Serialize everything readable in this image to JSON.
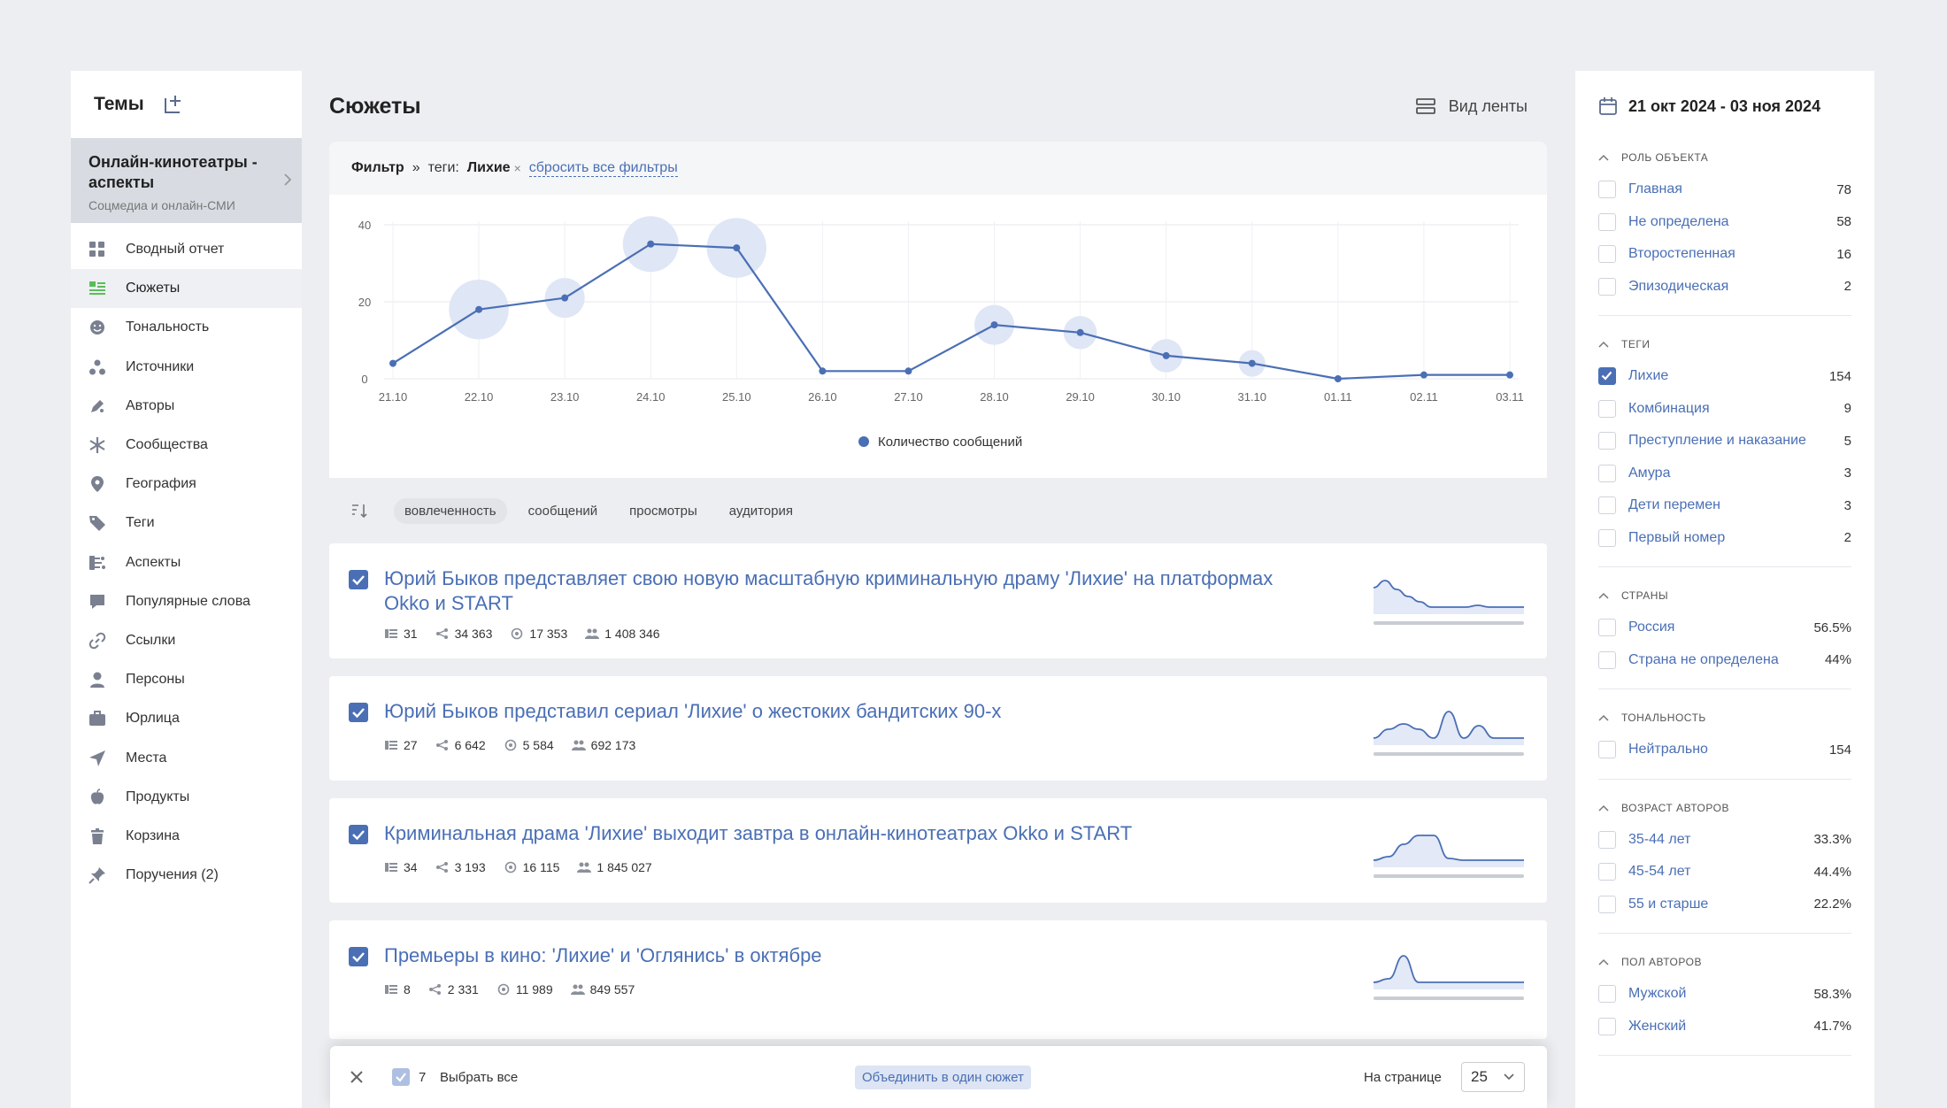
{
  "sidebar": {
    "title": "Темы",
    "theme": {
      "name": "Онлайн-кинотеатры - аспекты",
      "subtitle": "Соцмедиа и онлайн-СМИ"
    },
    "items": [
      {
        "label": "Сводный отчет",
        "icon": "grid-icon"
      },
      {
        "label": "Сюжеты",
        "icon": "stories-icon",
        "active": true
      },
      {
        "label": "Тональность",
        "icon": "smile-icon"
      },
      {
        "label": "Источники",
        "icon": "sources-icon"
      },
      {
        "label": "Авторы",
        "icon": "pen-icon"
      },
      {
        "label": "Сообщества",
        "icon": "communities-icon"
      },
      {
        "label": "География",
        "icon": "map-pin-icon"
      },
      {
        "label": "Теги",
        "icon": "tag-icon"
      },
      {
        "label": "Аспекты",
        "icon": "aspects-icon"
      },
      {
        "label": "Популярные слова",
        "icon": "speech-bubble-icon"
      },
      {
        "label": "Ссылки",
        "icon": "link-icon"
      },
      {
        "label": "Персоны",
        "icon": "person-icon"
      },
      {
        "label": "Юрлица",
        "icon": "briefcase-icon"
      },
      {
        "label": "Места",
        "icon": "navigation-icon"
      },
      {
        "label": "Продукты",
        "icon": "apple-icon"
      },
      {
        "label": "Корзина",
        "icon": "trash-icon"
      },
      {
        "label": "Поручения (2)",
        "icon": "pin-icon"
      }
    ]
  },
  "main": {
    "title": "Сюжеты",
    "feed_view_label": "Вид ленты",
    "filter": {
      "label": "Фильтр",
      "arrow": "»",
      "tags_label": "теги:",
      "tag_value": "Лихие",
      "remove_symbol": "×",
      "reset_label": "сбросить все фильтры"
    },
    "sort": {
      "options": [
        "вовлеченность",
        "сообщений",
        "просмотры",
        "аудитория"
      ],
      "active": 0
    },
    "stories": [
      {
        "title": "Юрий Быков представляет свою новую масштабную криминальную драму 'Лихие' на платформах Okko и START",
        "messages": "31",
        "reposts": "34 363",
        "views": "17 353",
        "audience": "1 408 346",
        "spark": [
          0.75,
          0.95,
          0.7,
          0.5,
          0.35,
          0.2,
          0.2,
          0.2,
          0.2,
          0.25,
          0.2,
          0.2,
          0.2,
          0.2
        ]
      },
      {
        "title": "Юрий Быков представил сериал 'Лихие' о жестоких бандитских 90-х",
        "messages": "27",
        "reposts": "6 642",
        "views": "5 584",
        "audience": "692 173",
        "spark": [
          0.2,
          0.45,
          0.6,
          0.45,
          0.2,
          0.95,
          0.2,
          0.55,
          0.2,
          0.2,
          0.2
        ]
      },
      {
        "title": "Криминальная драма 'Лихие' выходит завтра в онлайн-кинотеатрах Okko и START",
        "messages": "34",
        "reposts": "3 193",
        "views": "16 115",
        "audience": "1 845 027",
        "spark": [
          0.2,
          0.3,
          0.65,
          0.9,
          0.9,
          0.25,
          0.2,
          0.2,
          0.2,
          0.2,
          0.2
        ]
      },
      {
        "title": "Премьеры в кино: 'Лихие' и 'Оглянись' в октябре",
        "messages": "8",
        "reposts": "2 331",
        "views": "11 989",
        "audience": "849 557",
        "spark": [
          0.2,
          0.3,
          0.95,
          0.2,
          0.2,
          0.2,
          0.2,
          0.2,
          0.2,
          0.2,
          0.2
        ]
      }
    ]
  },
  "chart_data": {
    "type": "line",
    "title": "",
    "xlabel": "",
    "ylabel": "",
    "categories": [
      "21.10",
      "22.10",
      "23.10",
      "24.10",
      "25.10",
      "26.10",
      "27.10",
      "28.10",
      "29.10",
      "30.10",
      "31.10",
      "01.11",
      "02.11",
      "03.11"
    ],
    "series": [
      {
        "name": "Количество сообщений",
        "values": [
          4,
          18,
          21,
          35,
          34,
          2,
          2,
          14,
          12,
          6,
          4,
          0,
          1,
          1
        ],
        "color": "#4a6fb5"
      }
    ],
    "bubbles": [
      5,
      45,
      30,
      42,
      45,
      5,
      0,
      30,
      25,
      25,
      20,
      0,
      0,
      0
    ],
    "bubble_color": "#dfe6f5",
    "yticks": [
      0,
      20,
      40
    ],
    "ylim": [
      0,
      40
    ],
    "grid": true,
    "legend": "bottom-center"
  },
  "bottom_bar": {
    "selected_count": "7",
    "select_all_label": "Выбрать все",
    "merge_label": "Объединить в один сюжет",
    "per_page_label": "На странице",
    "per_page_value": "25"
  },
  "right_panel": {
    "date_range": "21 окт 2024 - 03 ноя 2024",
    "sections": [
      {
        "title": "Роль объекта",
        "items": [
          {
            "label": "Главная",
            "count": "78"
          },
          {
            "label": "Не определена",
            "count": "58"
          },
          {
            "label": "Второстепенная",
            "count": "16"
          },
          {
            "label": "Эпизодическая",
            "count": "2"
          }
        ]
      },
      {
        "title": "Теги",
        "items": [
          {
            "label": "Лихие",
            "count": "154",
            "checked": true
          },
          {
            "label": "Комбинация",
            "count": "9"
          },
          {
            "label": "Преступление и наказание",
            "count": "5"
          },
          {
            "label": "Амура",
            "count": "3"
          },
          {
            "label": "Дети перемен",
            "count": "3"
          },
          {
            "label": "Первый номер",
            "count": "2"
          }
        ]
      },
      {
        "title": "Страны",
        "items": [
          {
            "label": "Россия",
            "count": "56.5%"
          },
          {
            "label": "Страна не определена",
            "count": "44%"
          }
        ]
      },
      {
        "title": "Тональность",
        "items": [
          {
            "label": "Нейтрально",
            "count": "154"
          }
        ]
      },
      {
        "title": "Возраст авторов",
        "items": [
          {
            "label": "35-44 лет",
            "count": "33.3%"
          },
          {
            "label": "45-54 лет",
            "count": "44.4%"
          },
          {
            "label": "55 и старше",
            "count": "22.2%"
          }
        ]
      },
      {
        "title": "Пол авторов",
        "items": [
          {
            "label": "Мужской",
            "count": "58.3%"
          },
          {
            "label": "Женский",
            "count": "41.7%"
          }
        ]
      }
    ]
  }
}
